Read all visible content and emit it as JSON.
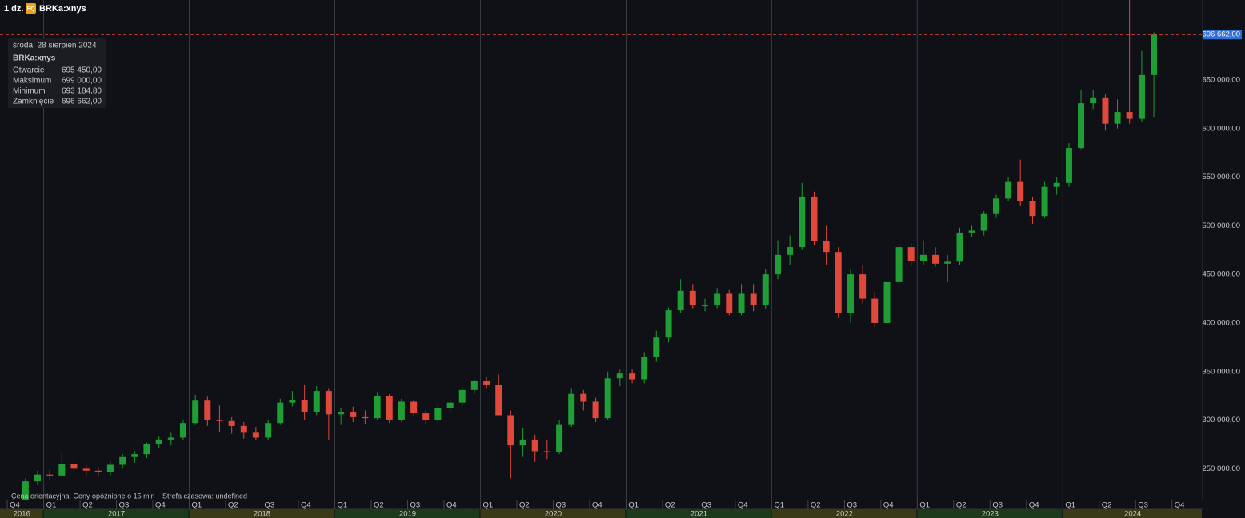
{
  "header": {
    "interval": "1 dz.",
    "badge": "EQ",
    "symbol": "BRKa:xnys"
  },
  "tooltip": {
    "date": "środa, 28 sierpień 2024",
    "symbol": "BRKa:xnys",
    "rows": [
      {
        "label": "Otwarcie",
        "value": "695 450,00"
      },
      {
        "label": "Maksimum",
        "value": "699 000,00"
      },
      {
        "label": "Minimum",
        "value": "693 184,80"
      },
      {
        "label": "Zamknięcie",
        "value": "696 662,00"
      }
    ]
  },
  "footer": {
    "note": "Cena orientacyjna. Ceny opóźnione o 15 min",
    "timezone": "Strefa czasowa: undefined"
  },
  "chart_data": {
    "type": "candlestick",
    "x": [
      2016.792,
      2016.875,
      2016.958,
      2017.042,
      2017.125,
      2017.208,
      2017.292,
      2017.375,
      2017.458,
      2017.542,
      2017.625,
      2017.708,
      2017.792,
      2017.875,
      2017.958,
      2018.042,
      2018.125,
      2018.208,
      2018.292,
      2018.375,
      2018.458,
      2018.542,
      2018.625,
      2018.708,
      2018.792,
      2018.875,
      2018.958,
      2019.042,
      2019.125,
      2019.208,
      2019.292,
      2019.375,
      2019.458,
      2019.542,
      2019.625,
      2019.708,
      2019.792,
      2019.875,
      2019.958,
      2020.042,
      2020.125,
      2020.208,
      2020.292,
      2020.375,
      2020.458,
      2020.542,
      2020.625,
      2020.708,
      2020.792,
      2020.875,
      2020.958,
      2021.042,
      2021.125,
      2021.208,
      2021.292,
      2021.375,
      2021.458,
      2021.542,
      2021.625,
      2021.708,
      2021.792,
      2021.875,
      2021.958,
      2022.042,
      2022.125,
      2022.208,
      2022.292,
      2022.375,
      2022.458,
      2022.542,
      2022.625,
      2022.708,
      2022.792,
      2022.875,
      2022.958,
      2023.042,
      2023.125,
      2023.208,
      2023.292,
      2023.375,
      2023.458,
      2023.542,
      2023.625,
      2023.708,
      2023.792,
      2023.875,
      2023.958,
      2024.042,
      2024.125,
      2024.208,
      2024.292,
      2024.375,
      2024.458,
      2024.542,
      2024.625
    ],
    "open": [
      214000,
      216000,
      237000,
      244000,
      243000,
      255000,
      250000,
      248000,
      247000,
      254000,
      262000,
      265000,
      275000,
      280000,
      282000,
      297000,
      320000,
      300000,
      299000,
      294000,
      287000,
      282000,
      297000,
      318000,
      321000,
      308000,
      330000,
      306000,
      308000,
      303000,
      302000,
      325000,
      300000,
      319000,
      307000,
      300000,
      312000,
      318000,
      331000,
      340000,
      336000,
      305000,
      274000,
      280000,
      268000,
      267000,
      295000,
      327000,
      319000,
      302000,
      343000,
      348000,
      342000,
      365000,
      385000,
      413000,
      433000,
      418000,
      418000,
      430000,
      410000,
      430000,
      418000,
      450000,
      470000,
      478000,
      530000,
      484000,
      473000,
      410000,
      450000,
      425000,
      400000,
      442000,
      478000,
      464000,
      470000,
      461000,
      463000,
      493000,
      495000,
      512000,
      528000,
      545000,
      525000,
      510000,
      540000,
      544000,
      580000,
      626000,
      632000,
      605000,
      617000,
      610000,
      655000
    ],
    "high": [
      219000,
      240000,
      248000,
      249000,
      266000,
      260000,
      254000,
      252000,
      257000,
      265000,
      268000,
      277000,
      284000,
      287000,
      300000,
      326000,
      324000,
      315000,
      303000,
      298000,
      293000,
      300000,
      322000,
      330000,
      336000,
      335000,
      333000,
      312000,
      314000,
      310000,
      328000,
      327000,
      322000,
      321000,
      310000,
      316000,
      321000,
      334000,
      342000,
      345000,
      347000,
      310000,
      292000,
      285000,
      280000,
      300000,
      333000,
      331000,
      323000,
      350000,
      352000,
      352000,
      370000,
      392000,
      416000,
      445000,
      440000,
      425000,
      436000,
      434000,
      440000,
      440000,
      455000,
      485000,
      490000,
      544000,
      535000,
      500000,
      478000,
      455000,
      460000,
      432000,
      445000,
      482000,
      482000,
      485000,
      478000,
      470000,
      498000,
      500000,
      515000,
      532000,
      550000,
      568000,
      530000,
      545000,
      550000,
      585000,
      640000,
      640000,
      635000,
      630000,
      740000,
      680000,
      699000
    ],
    "low": [
      209000,
      214000,
      233000,
      238000,
      241000,
      246000,
      243000,
      242000,
      243000,
      250000,
      256000,
      261000,
      271000,
      274000,
      280000,
      295000,
      294000,
      288000,
      286000,
      281000,
      279000,
      280000,
      295000,
      314000,
      300000,
      305000,
      280000,
      295000,
      298000,
      296000,
      300000,
      297000,
      298000,
      304000,
      296000,
      298000,
      308000,
      315000,
      327000,
      333000,
      305000,
      240000,
      262000,
      257000,
      260000,
      265000,
      293000,
      310000,
      298000,
      300000,
      335000,
      338000,
      338000,
      360000,
      380000,
      410000,
      415000,
      412000,
      415000,
      408000,
      408000,
      412000,
      415000,
      445000,
      460000,
      475000,
      480000,
      460000,
      405000,
      400000,
      420000,
      396000,
      393000,
      438000,
      458000,
      460000,
      458000,
      442000,
      460000,
      488000,
      490000,
      508000,
      525000,
      520000,
      502000,
      508000,
      532000,
      540000,
      578000,
      620000,
      598000,
      600000,
      605000,
      607000,
      612000
    ],
    "close": [
      216000,
      237000,
      244000,
      243000,
      255000,
      250000,
      248000,
      247000,
      254000,
      262000,
      265000,
      275000,
      280000,
      282000,
      297000,
      320000,
      300000,
      299000,
      294000,
      287000,
      282000,
      297000,
      318000,
      321000,
      308000,
      330000,
      306000,
      308000,
      303000,
      302000,
      325000,
      300000,
      319000,
      307000,
      300000,
      312000,
      318000,
      331000,
      340000,
      336000,
      305000,
      274000,
      280000,
      268000,
      267000,
      295000,
      327000,
      319000,
      302000,
      343000,
      348000,
      342000,
      365000,
      385000,
      413000,
      433000,
      418000,
      418000,
      430000,
      410000,
      430000,
      418000,
      450000,
      470000,
      478000,
      530000,
      484000,
      473000,
      410000,
      450000,
      425000,
      400000,
      442000,
      478000,
      464000,
      470000,
      461000,
      463000,
      493000,
      495000,
      512000,
      528000,
      545000,
      525000,
      510000,
      540000,
      544000,
      580000,
      626000,
      632000,
      605000,
      617000,
      610000,
      655000,
      696662
    ],
    "colors": {
      "up": "#1e9e34",
      "down": "#e0483a"
    },
    "xlim": [
      2016.7,
      2024.96
    ],
    "ylim": [
      217400,
      732200
    ],
    "yticks": [
      {
        "value": 250000,
        "label": "250 000,00"
      },
      {
        "value": 300000,
        "label": "300 000,00"
      },
      {
        "value": 350000,
        "label": "350 000,00"
      },
      {
        "value": 400000,
        "label": "400 000,00"
      },
      {
        "value": 450000,
        "label": "450 000,00"
      },
      {
        "value": 500000,
        "label": "500 000,00"
      },
      {
        "value": 550000,
        "label": "550 000,00"
      },
      {
        "value": 600000,
        "label": "600 000,00"
      },
      {
        "value": 650000,
        "label": "650 000,00"
      }
    ],
    "xticks": [
      {
        "value": 2016.75,
        "label": "Q4"
      },
      {
        "value": 2017,
        "label": "Q1"
      },
      {
        "value": 2017.25,
        "label": "Q2"
      },
      {
        "value": 2017.5,
        "label": "Q3"
      },
      {
        "value": 2017.75,
        "label": "Q4"
      },
      {
        "value": 2018,
        "label": "Q1"
      },
      {
        "value": 2018.25,
        "label": "Q2"
      },
      {
        "value": 2018.5,
        "label": "Q3"
      },
      {
        "value": 2018.75,
        "label": "Q4"
      },
      {
        "value": 2019,
        "label": "Q1"
      },
      {
        "value": 2019.25,
        "label": "Q2"
      },
      {
        "value": 2019.5,
        "label": "Q3"
      },
      {
        "value": 2019.75,
        "label": "Q4"
      },
      {
        "value": 2020,
        "label": "Q1"
      },
      {
        "value": 2020.25,
        "label": "Q2"
      },
      {
        "value": 2020.5,
        "label": "Q3"
      },
      {
        "value": 2020.75,
        "label": "Q4"
      },
      {
        "value": 2021,
        "label": "Q1"
      },
      {
        "value": 2021.25,
        "label": "Q2"
      },
      {
        "value": 2021.5,
        "label": "Q3"
      },
      {
        "value": 2021.75,
        "label": "Q4"
      },
      {
        "value": 2022,
        "label": "Q1"
      },
      {
        "value": 2022.25,
        "label": "Q2"
      },
      {
        "value": 2022.5,
        "label": "Q3"
      },
      {
        "value": 2022.75,
        "label": "Q4"
      },
      {
        "value": 2023,
        "label": "Q1"
      },
      {
        "value": 2023.25,
        "label": "Q2"
      },
      {
        "value": 2023.5,
        "label": "Q3"
      },
      {
        "value": 2023.75,
        "label": "Q4"
      },
      {
        "value": 2024,
        "label": "Q1"
      },
      {
        "value": 2024.25,
        "label": "Q2"
      },
      {
        "value": 2024.5,
        "label": "Q3"
      },
      {
        "value": 2024.75,
        "label": "Q4"
      }
    ],
    "year_ticks": [
      2016,
      2017,
      2018,
      2019,
      2020,
      2021,
      2022,
      2023,
      2024
    ],
    "year_colors": [
      "#3b3a17",
      "#1d3a1c"
    ],
    "last_price": {
      "value": 696662,
      "label": "696 662,00",
      "color": "#e0483a"
    }
  }
}
